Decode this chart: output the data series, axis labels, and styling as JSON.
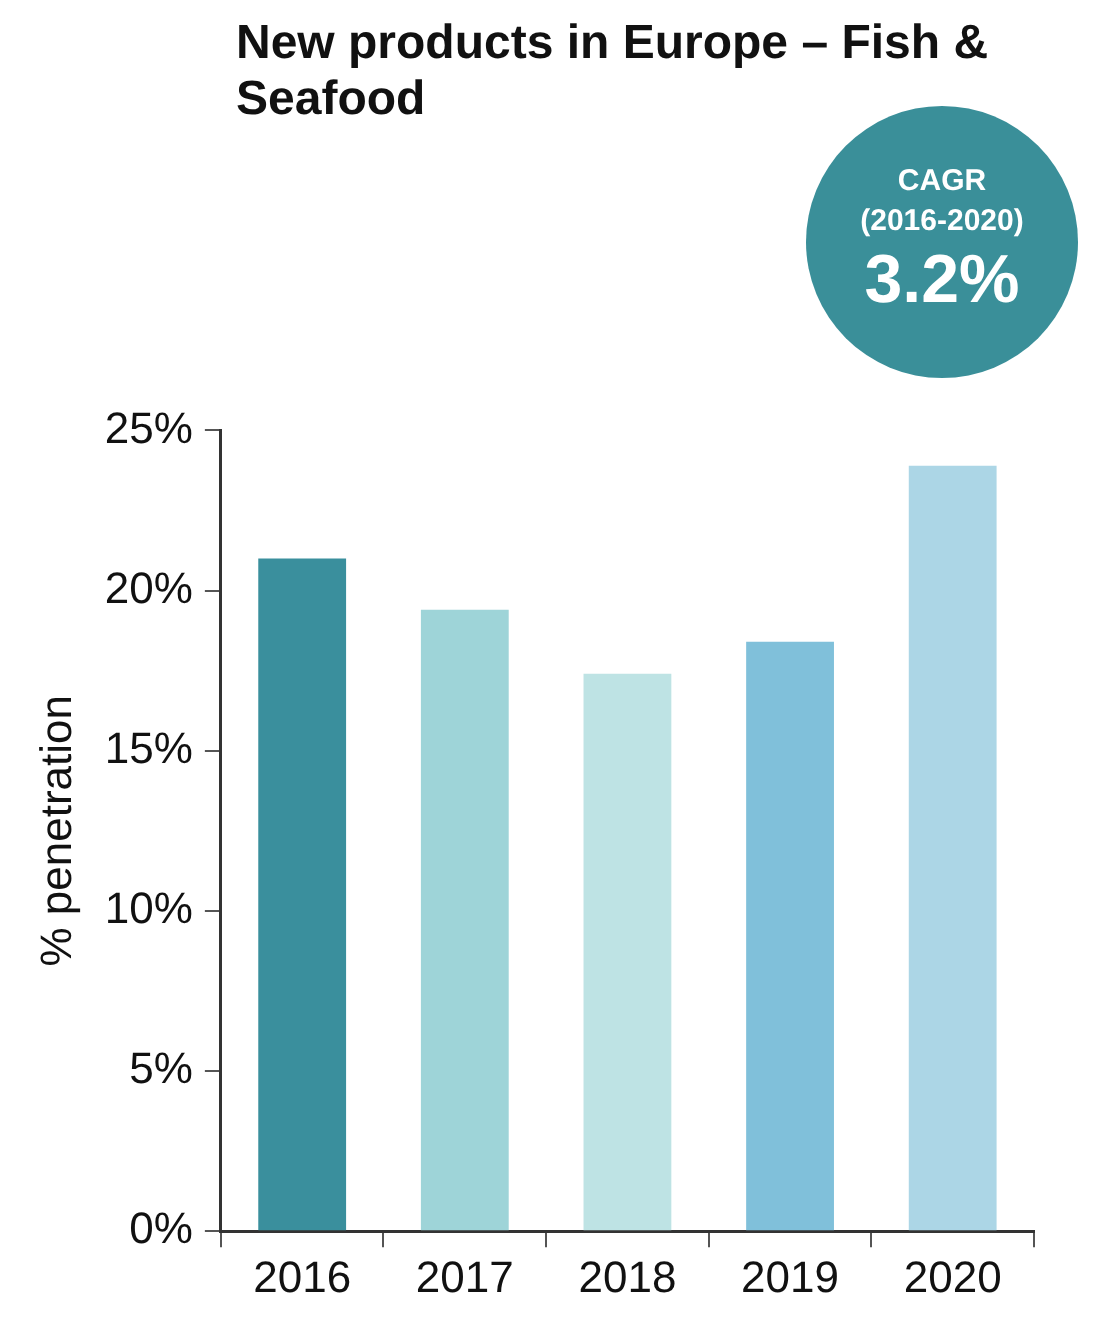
{
  "chart_data": {
    "type": "bar",
    "title": "New products in Europe – Fish & Seafood",
    "ylabel": "% penetration",
    "annotations": [
      "CAGR",
      "(2016-2020)",
      "3.2%"
    ],
    "categories": [
      "2016",
      "2017",
      "2018",
      "2019",
      "2020"
    ],
    "values": [
      21.0,
      19.4,
      17.4,
      18.4,
      23.9
    ],
    "colors": [
      "#3a8f9d",
      "#9ed4d8",
      "#bee3e4",
      "#80c0da",
      "#acd6e6"
    ],
    "ylim": [
      0,
      25
    ],
    "yticks": [
      {
        "value": 0,
        "label": "0%"
      },
      {
        "value": 5,
        "label": "5%"
      },
      {
        "value": 10,
        "label": "10%"
      },
      {
        "value": 15,
        "label": "15%"
      },
      {
        "value": 20,
        "label": "20%"
      },
      {
        "value": 25,
        "label": "25%"
      }
    ],
    "grid": false,
    "legend": false
  }
}
